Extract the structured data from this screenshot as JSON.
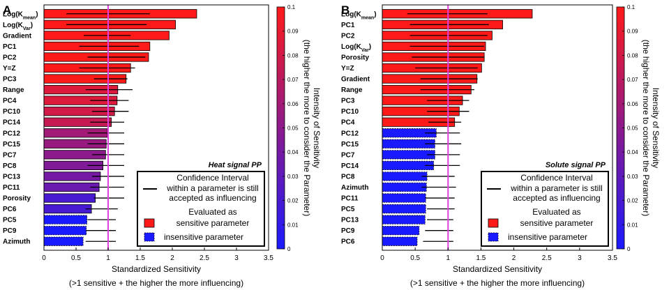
{
  "chart_data": [
    {
      "type": "bar",
      "orientation": "horizontal",
      "panel_label": "A",
      "title": "Heat signal PP",
      "xlabel": "Standardized Sensitivity",
      "xlabel_note": "(>1 sensitive + the higher the more influencing)",
      "xlim": [
        0,
        3.5
      ],
      "x_ticks": [
        "0",
        "0.5",
        "1",
        "1.5",
        "2",
        "2.5",
        "3",
        "3.5"
      ],
      "reference_line": 1,
      "colorbar": {
        "min": 0,
        "max": 0.1,
        "ticks": [
          "0",
          "0.01",
          "0.02",
          "0.03",
          "0.04",
          "0.05",
          "0.06",
          "0.07",
          "0.08",
          "0.09",
          "0.1"
        ],
        "label_line1": "Intensity of Sensitivity",
        "label_line2": "(the higher the more to consider the Parameter)"
      },
      "legend": {
        "line_label": "Confidence Interval",
        "line_desc": [
          "within a parameter is still",
          "accepted as influencing"
        ],
        "sensitive_label": [
          "Evaluated as",
          "sensitive parameter"
        ],
        "insensitive_label": "insensitive parameter"
      },
      "categories": [
        "Log(Kmean)",
        "Log(KVar)",
        "Gradient",
        "PC1",
        "PC2",
        "Y=Z",
        "PC3",
        "Range",
        "PC4",
        "PC10",
        "PC14",
        "PC12",
        "PC15",
        "PC7",
        "PC8",
        "PC13",
        "PC11",
        "Porosity",
        "PC6",
        "PC5",
        "PC9",
        "Azimuth"
      ],
      "values": [
        2.38,
        2.05,
        1.95,
        1.65,
        1.63,
        1.35,
        1.28,
        1.15,
        1.14,
        1.1,
        1.05,
        0.99,
        0.97,
        0.96,
        0.92,
        0.88,
        0.86,
        0.8,
        0.74,
        0.67,
        0.66,
        0.61
      ],
      "ci_low": [
        0.35,
        0.35,
        0.62,
        0.55,
        0.68,
        0.55,
        0.78,
        0.65,
        0.72,
        0.75,
        0.72,
        0.68,
        0.68,
        0.75,
        0.68,
        0.75,
        0.72,
        0.78,
        0.65,
        0.68,
        0.65,
        0.65
      ],
      "ci_high": [
        1.65,
        1.6,
        1.35,
        1.48,
        1.58,
        1.42,
        1.3,
        1.38,
        1.32,
        1.32,
        1.25,
        1.25,
        1.25,
        1.25,
        1.25,
        1.25,
        1.25,
        1.25,
        1.15,
        1.12,
        1.12,
        1.12
      ],
      "intensity": [
        0.1,
        0.1,
        0.1,
        0.1,
        0.1,
        0.1,
        0.1,
        0.085,
        0.085,
        0.08,
        0.075,
        0.06,
        0.055,
        0.05,
        0.045,
        0.04,
        0.035,
        0.02,
        0.02,
        0.0,
        0.0,
        0.0
      ],
      "sensitive": [
        true,
        true,
        true,
        true,
        true,
        true,
        true,
        true,
        true,
        true,
        true,
        true,
        true,
        true,
        true,
        true,
        true,
        true,
        true,
        false,
        false,
        false
      ]
    },
    {
      "type": "bar",
      "orientation": "horizontal",
      "panel_label": "B",
      "title": "Solute signal PP",
      "xlabel": "Standardized Sensitivity",
      "xlabel_note": "(>1 sensitive + the higher the more influencing)",
      "xlim": [
        0,
        3.5
      ],
      "x_ticks": [
        "0",
        "0.5",
        "1",
        "1.5",
        "2",
        "2.5",
        "3",
        "3.5"
      ],
      "reference_line": 1,
      "colorbar": {
        "min": 0,
        "max": 0.1,
        "ticks": [
          "0",
          "0.01",
          "0.02",
          "0.03",
          "0.04",
          "0.05",
          "0.06",
          "0.07",
          "0.08",
          "0.09",
          "0.1"
        ],
        "label_line1": "Intensity of Sensitivity",
        "label_line2": "(the higher the more to consider the Parameter)"
      },
      "legend": {
        "line_label": "Confidence Interval",
        "line_desc": [
          "within a parameter is still",
          "accepted as influencing"
        ],
        "sensitive_label": [
          "Evaluated as",
          "sensitive parameter"
        ],
        "insensitive_label": "insensitive parameter"
      },
      "categories": [
        "Log(Kmean)",
        "PC1",
        "PC2",
        "Log(KVar)",
        "Porosity",
        "Y=Z",
        "Gradient",
        "Range",
        "PC3",
        "PC10",
        "PC4",
        "PC12",
        "PC15",
        "PC7",
        "PC14",
        "PC8",
        "Azimuth",
        "PC11",
        "PC5",
        "PC13",
        "PC9",
        "PC6"
      ],
      "values": [
        2.28,
        1.83,
        1.67,
        1.57,
        1.55,
        1.51,
        1.44,
        1.35,
        1.22,
        1.17,
        1.1,
        0.82,
        0.8,
        0.8,
        0.78,
        0.68,
        0.67,
        0.66,
        0.66,
        0.65,
        0.56,
        0.53
      ],
      "ci_low": [
        0.38,
        0.42,
        0.42,
        0.42,
        0.45,
        0.5,
        0.58,
        0.58,
        0.68,
        0.68,
        0.7,
        0.65,
        0.65,
        0.68,
        0.65,
        0.6,
        0.6,
        0.65,
        0.68,
        0.68,
        0.65,
        0.62
      ],
      "ci_high": [
        1.6,
        1.62,
        1.6,
        1.55,
        1.55,
        1.45,
        1.45,
        1.4,
        1.32,
        1.32,
        1.2,
        1.18,
        1.2,
        1.18,
        1.18,
        1.1,
        1.12,
        1.1,
        1.1,
        1.08,
        1.08,
        1.08
      ],
      "intensity": [
        0.1,
        0.1,
        0.1,
        0.1,
        0.1,
        0.1,
        0.1,
        0.1,
        0.1,
        0.1,
        0.1,
        0.0,
        0.0,
        0.0,
        0.0,
        0.0,
        0.0,
        0.0,
        0.0,
        0.0,
        0.0,
        0.0
      ],
      "sensitive": [
        true,
        true,
        true,
        true,
        true,
        true,
        true,
        true,
        true,
        true,
        true,
        false,
        false,
        false,
        false,
        false,
        false,
        false,
        false,
        false,
        false,
        false
      ]
    }
  ],
  "colors": {
    "high": "#ff1a1a",
    "low": "#1a1aff",
    "reference_line": "#e040e0"
  }
}
